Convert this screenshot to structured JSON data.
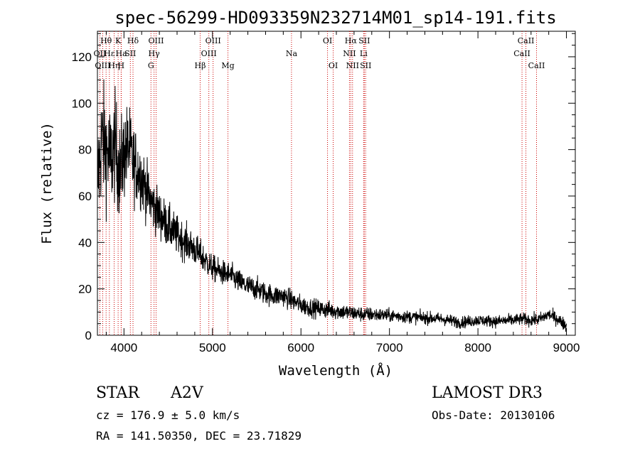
{
  "chart_data": {
    "type": "line",
    "title": "spec-56299-HD093359N232714M01_sp14-191.fits",
    "xlabel": "Wavelength (Å)",
    "ylabel": "Flux (relative)",
    "xlim": [
      3700,
      9100
    ],
    "ylim": [
      0,
      131
    ],
    "xticks": [
      4000,
      5000,
      6000,
      7000,
      8000,
      9000
    ],
    "xtick_labels": [
      "4000",
      "5000",
      "6000",
      "7000",
      "8000",
      "9000"
    ],
    "yticks": [
      0,
      20,
      40,
      60,
      80,
      100,
      120
    ],
    "ytick_labels": [
      "0",
      "20",
      "40",
      "60",
      "80",
      "100",
      "120"
    ],
    "series": [
      {
        "name": "flux",
        "color": "#000000",
        "envelope": {
          "wavelength": [
            3700,
            3750,
            3800,
            3850,
            3900,
            3950,
            4000,
            4050,
            4100,
            4150,
            4200,
            4250,
            4300,
            4350,
            4400,
            4500,
            4600,
            4700,
            4800,
            4900,
            5000,
            5100,
            5200,
            5300,
            5400,
            5500,
            5600,
            5700,
            5800,
            5900,
            6000,
            6100,
            6200,
            6300,
            6400,
            6500,
            6600,
            6700,
            6800,
            7000,
            7200,
            7400,
            7600,
            7800,
            7900,
            8000,
            8200,
            8400,
            8500,
            8600,
            8700,
            8800,
            8900,
            9000
          ],
          "flux": [
            65,
            85,
            80,
            75,
            82,
            70,
            78,
            82,
            75,
            72,
            68,
            63,
            58,
            55,
            52,
            47,
            43,
            40,
            37,
            33,
            29,
            27,
            26,
            23,
            21,
            20,
            18,
            17,
            17,
            15,
            13,
            12,
            11.5,
            11,
            10.5,
            10,
            9.5,
            9,
            9,
            8.5,
            8,
            7.5,
            7,
            5.5,
            6,
            6.5,
            6,
            6.5,
            7,
            6.5,
            7,
            9,
            7,
            4
          ]
        },
        "noise_amplitude": {
          "wavelength": [
            3700,
            3900,
            4100,
            4300,
            4600,
            5000,
            6000,
            7000,
            8000,
            9000
          ],
          "sigma": [
            18,
            16,
            12,
            8,
            6,
            4,
            3,
            2,
            1.8,
            2
          ]
        }
      }
    ],
    "line_markers": {
      "color": "#cc0000",
      "lines": [
        {
          "label": "Hθ",
          "wavelength": 3798,
          "row": 1
        },
        {
          "label": "OII",
          "wavelength": 3727,
          "row": 2
        },
        {
          "label": "OIII",
          "wavelength": 3760,
          "row": 3
        },
        {
          "label": "Hε",
          "wavelength": 3835,
          "row": 2
        },
        {
          "label": "Hη",
          "wavelength": 3889,
          "row": 3
        },
        {
          "label": "K",
          "wavelength": 3934,
          "row": 1
        },
        {
          "label": "Ha",
          "wavelength": 3970,
          "row": 2
        },
        {
          "label": "H",
          "wavelength": 3968,
          "row": 3
        },
        {
          "label": "SII",
          "wavelength": 4072,
          "row": 2
        },
        {
          "label": "Hδ",
          "wavelength": 4102,
          "row": 1
        },
        {
          "label": "OIII",
          "wavelength": 4363,
          "row": 1
        },
        {
          "label": "Hγ",
          "wavelength": 4340,
          "row": 2
        },
        {
          "label": "G",
          "wavelength": 4305,
          "row": 3
        },
        {
          "label": "Hβ",
          "wavelength": 4861,
          "row": 3
        },
        {
          "label": "OIII",
          "wavelength": 5007,
          "row": 1
        },
        {
          "label": "OIII",
          "wavelength": 4959,
          "row": 2
        },
        {
          "label": "Mg",
          "wavelength": 5175,
          "row": 3
        },
        {
          "label": "Na",
          "wavelength": 5893,
          "row": 2
        },
        {
          "label": "OI",
          "wavelength": 6300,
          "row": 1
        },
        {
          "label": "OI",
          "wavelength": 6364,
          "row": 3
        },
        {
          "label": "Hα",
          "wavelength": 6563,
          "row": 1
        },
        {
          "label": "NII",
          "wavelength": 6548,
          "row": 2
        },
        {
          "label": "NII",
          "wavelength": 6583,
          "row": 3
        },
        {
          "label": "SII",
          "wavelength": 6716,
          "row": 1
        },
        {
          "label": "Li",
          "wavelength": 6708,
          "row": 2
        },
        {
          "label": "SII",
          "wavelength": 6731,
          "row": 3
        },
        {
          "label": "CaII",
          "wavelength": 8542,
          "row": 1
        },
        {
          "label": "CaII",
          "wavelength": 8498,
          "row": 2
        },
        {
          "label": "CaII",
          "wavelength": 8662,
          "row": 3
        }
      ]
    }
  },
  "info": {
    "object_class": "STAR",
    "subclass": "A2V",
    "cz": "cz = 176.9 ± 5.0 km/s",
    "coords": "RA = 141.50350, DEC =  23.71829",
    "survey": "LAMOST DR3",
    "obs_date": "Obs-Date: 20130106"
  }
}
